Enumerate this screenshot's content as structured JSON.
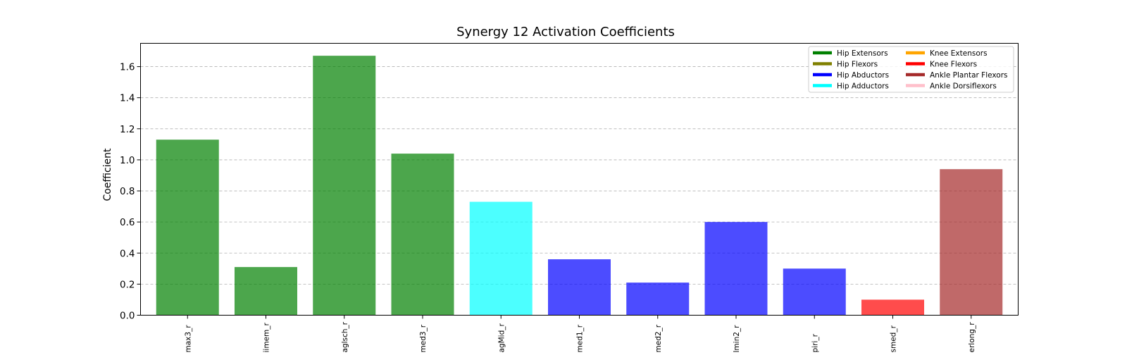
{
  "chart_data": {
    "type": "bar",
    "title": "Synergy 12 Activation Coefficients",
    "xlabel": "",
    "ylabel": "Coefficient",
    "ylim": [
      0,
      1.75
    ],
    "yticks": [
      0.0,
      0.2,
      0.4,
      0.6,
      0.8,
      1.0,
      1.2,
      1.4,
      1.6
    ],
    "ytick_labels": [
      "0.0",
      "0.2",
      "0.4",
      "0.6",
      "0.8",
      "1.0",
      "1.2",
      "1.4",
      "1.6"
    ],
    "grid": "y-dashed",
    "legend_position": "top-right",
    "categories": [
      "max3_r",
      "iimem_r",
      "aglsch_r",
      "med3_r",
      "agMid_r",
      "med1_r",
      "med2_r",
      "lmin2_r",
      "piri_r",
      "smed_r",
      "erlong_r"
    ],
    "values": [
      1.13,
      0.31,
      1.67,
      1.04,
      0.73,
      0.36,
      0.21,
      0.6,
      0.3,
      0.1,
      0.94
    ],
    "bar_groups": [
      "Hip Extensors",
      "Hip Extensors",
      "Hip Extensors",
      "Hip Extensors",
      "Hip Adductors",
      "Hip Abductors",
      "Hip Abductors",
      "Hip Abductors",
      "Hip Abductors",
      "Knee Flexors",
      "Ankle Plantar Flexors"
    ],
    "legend": [
      {
        "label": "Hip Extensors",
        "color": "#008000"
      },
      {
        "label": "Hip Flexors",
        "color": "#808000"
      },
      {
        "label": "Hip Abductors",
        "color": "#0000ff"
      },
      {
        "label": "Hip Adductors",
        "color": "#00ffff"
      },
      {
        "label": "Knee Extensors",
        "color": "#ffa500"
      },
      {
        "label": "Knee Flexors",
        "color": "#ff0000"
      },
      {
        "label": "Ankle Plantar Flexors",
        "color": "#a52a2a"
      },
      {
        "label": "Ankle Dorsiflexors",
        "color": "#ffc0cb"
      }
    ],
    "bar_opacity": 0.7
  }
}
